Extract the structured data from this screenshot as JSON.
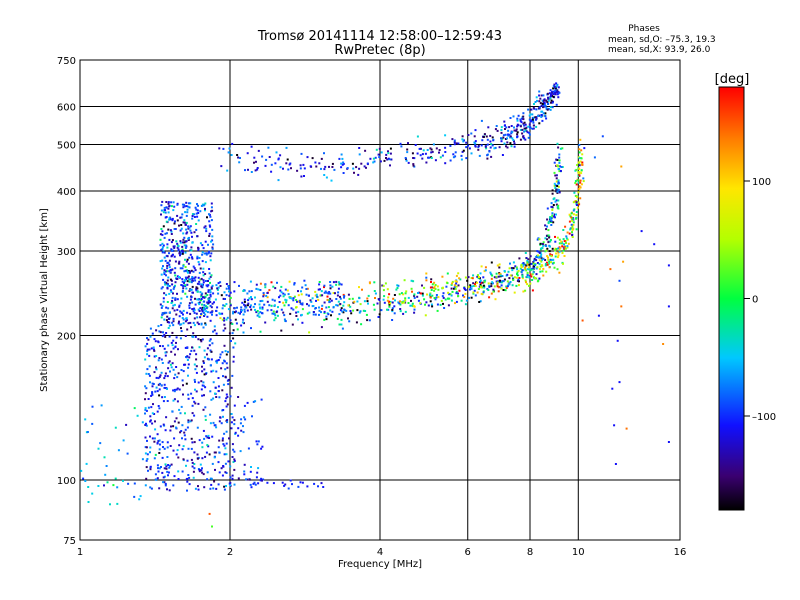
{
  "chart_data": {
    "type": "scatter",
    "title": "Tromsø 20141114  12:58:00–12:59:43",
    "subtitle": "RwPretec (8p)",
    "xlabel": "Frequency [MHz]",
    "ylabel": "Stationary phase Virtual Height [km]",
    "xscale": "log",
    "yscale": "log",
    "xlim": [
      1,
      16
    ],
    "ylim": [
      75,
      750
    ],
    "grid": true,
    "x_ticks": [
      1,
      2,
      4,
      6,
      8,
      10,
      16
    ],
    "x_tick_labels": [
      "1",
      "2",
      "4",
      "6",
      "8",
      "10",
      "16"
    ],
    "y_ticks": [
      75,
      100,
      200,
      300,
      400,
      500,
      600,
      750
    ],
    "y_tick_labels": [
      "75",
      "100",
      "200",
      "300",
      "400",
      "500",
      "600",
      "750"
    ],
    "stats": {
      "title": "Phases",
      "line_o": "mean, sd,O: –75.3, 19.3",
      "line_x": "mean, sd,X:  93.9, 26.0"
    },
    "colorbar": {
      "label": "[deg]",
      "range": [
        -180,
        180
      ],
      "ticks": [
        100,
        0,
        -100
      ],
      "tick_labels": [
        "100",
        "0",
        "–100"
      ],
      "colormap": "rainbow"
    },
    "traces": [
      {
        "f": [
          1.92,
          2.4,
          3.0,
          3.6,
          4.2,
          5.0,
          5.8,
          6.4,
          6.9,
          7.3,
          7.6,
          7.9,
          8.2,
          8.45,
          8.7,
          8.9,
          9.1
        ],
        "h": [
          470,
          460,
          450,
          458,
          470,
          482,
          493,
          502,
          510,
          520,
          535,
          550,
          575,
          600,
          620,
          630,
          640
        ],
        "phase": -110,
        "phase_var": 60
      },
      {
        "f": [
          1.58,
          1.7,
          1.85,
          2.1,
          2.6,
          3.2,
          3.8,
          4.4,
          5.0,
          5.6,
          6.2,
          6.8,
          7.3,
          7.8,
          8.2,
          8.5,
          8.75,
          8.95,
          9.1,
          9.2
        ],
        "h": [
          300,
          245,
          225,
          218,
          220,
          224,
          228,
          232,
          237,
          243,
          250,
          256,
          263,
          272,
          285,
          300,
          330,
          370,
          420,
          480
        ],
        "phase": -80,
        "phase_var": 120
      },
      {
        "f": [
          2.3,
          3.0,
          3.8,
          4.5,
          5.2,
          5.9,
          6.6,
          7.3,
          7.9,
          8.5,
          9.0,
          9.4,
          9.7,
          9.9,
          10.05,
          10.15
        ],
        "h": [
          245,
          240,
          242,
          246,
          250,
          255,
          258,
          262,
          268,
          278,
          292,
          310,
          340,
          380,
          430,
          490
        ],
        "phase": 40,
        "phase_var": 150
      }
    ],
    "clusters": [
      {
        "f_range": [
          1.45,
          1.85
        ],
        "h_range": [
          210,
          380
        ],
        "n": 500,
        "phase": -95,
        "phase_var": 55
      },
      {
        "f_range": [
          1.35,
          2.05
        ],
        "h_range": [
          95,
          210
        ],
        "n": 550,
        "phase": -100,
        "phase_var": 55
      },
      {
        "f_range": [
          1.9,
          2.35
        ],
        "h_range": [
          100,
          150
        ],
        "n": 60,
        "phase": -105,
        "phase_var": 40
      },
      {
        "f_range": [
          1.0,
          1.35
        ],
        "h_range": [
          88,
          145
        ],
        "n": 40,
        "phase": -60,
        "phase_var": 40
      },
      {
        "f_range": [
          2.2,
          3.1
        ],
        "h_range": [
          96,
          100
        ],
        "n": 25,
        "phase": -105,
        "phase_var": 20
      },
      {
        "f_range": [
          1.75,
          3.4
        ],
        "h_range": [
          220,
          260
        ],
        "n": 220,
        "phase": -90,
        "phase_var": 50
      }
    ],
    "scattered": [
      {
        "f": 12.2,
        "h": 450,
        "phase": 120
      },
      {
        "f": 11.2,
        "h": 520,
        "phase": -90
      },
      {
        "f": 10.8,
        "h": 470,
        "phase": -80
      },
      {
        "f": 13.4,
        "h": 330,
        "phase": -110
      },
      {
        "f": 14.2,
        "h": 310,
        "phase": -110
      },
      {
        "f": 12.3,
        "h": 285,
        "phase": 120
      },
      {
        "f": 11.6,
        "h": 275,
        "phase": 140
      },
      {
        "f": 15.2,
        "h": 280,
        "phase": -110
      },
      {
        "f": 12.1,
        "h": 260,
        "phase": -90
      },
      {
        "f": 12.2,
        "h": 230,
        "phase": 140
      },
      {
        "f": 10.2,
        "h": 215,
        "phase": 150
      },
      {
        "f": 11.0,
        "h": 220,
        "phase": -110
      },
      {
        "f": 15.2,
        "h": 230,
        "phase": -110
      },
      {
        "f": 12.0,
        "h": 195,
        "phase": -110
      },
      {
        "f": 14.8,
        "h": 192,
        "phase": 130
      },
      {
        "f": 11.7,
        "h": 155,
        "phase": -110
      },
      {
        "f": 12.1,
        "h": 160,
        "phase": -110
      },
      {
        "f": 12.5,
        "h": 128,
        "phase": 140
      },
      {
        "f": 15.2,
        "h": 120,
        "phase": -110
      },
      {
        "f": 11.9,
        "h": 108,
        "phase": -110
      },
      {
        "f": 11.8,
        "h": 130,
        "phase": -110
      },
      {
        "f": 1.82,
        "h": 85,
        "phase": 150
      },
      {
        "f": 1.84,
        "h": 80,
        "phase": 20
      },
      {
        "f": 1.04,
        "h": 90,
        "phase": -40
      }
    ]
  }
}
